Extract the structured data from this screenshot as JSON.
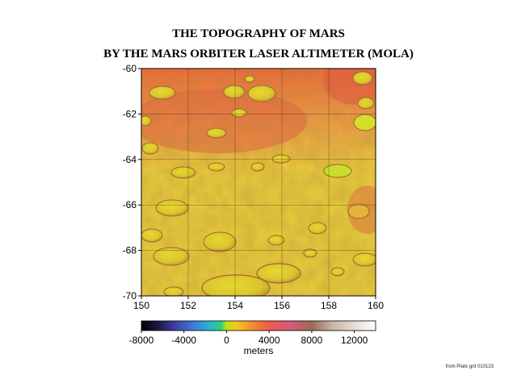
{
  "title": {
    "line1": "THE TOPOGRAPHY OF MARS",
    "line2": "BY THE MARS ORBITER LASER ALTIMETER (MOLA)"
  },
  "map": {
    "latitude_ticks": [
      -60,
      -62,
      -64,
      -66,
      -68,
      -70
    ],
    "latitude_labels": [
      "-60",
      "-62",
      "-64",
      "-66",
      "-68",
      "-70"
    ],
    "longitude_ticks": [
      150,
      152,
      154,
      156,
      158,
      160
    ],
    "longitude_labels": [
      "150",
      "152",
      "154",
      "156",
      "158",
      "160"
    ],
    "lat_range": [
      -70,
      -60
    ],
    "lon_range": [
      150,
      160
    ],
    "grid": true
  },
  "colorbar": {
    "range_m": [
      -8000,
      14000
    ],
    "tick_values": [
      -8000,
      -4000,
      0,
      4000,
      8000,
      12000
    ],
    "tick_labels": [
      "-8000",
      "-4000",
      "0",
      "4000",
      "8000",
      "12000"
    ],
    "unit": "meters",
    "stops": [
      {
        "value": -8000,
        "color": "#000000"
      },
      {
        "value": -6500,
        "color": "#1c1640"
      },
      {
        "value": -5000,
        "color": "#3c3a9a"
      },
      {
        "value": -3000,
        "color": "#3f7ee0"
      },
      {
        "value": -1500,
        "color": "#27b7c8"
      },
      {
        "value": -500,
        "color": "#2fd07a"
      },
      {
        "value": 0,
        "color": "#bfe11a"
      },
      {
        "value": 1000,
        "color": "#f4c321"
      },
      {
        "value": 2500,
        "color": "#f48a2c"
      },
      {
        "value": 4000,
        "color": "#ee5a4d"
      },
      {
        "value": 6000,
        "color": "#d45a7c"
      },
      {
        "value": 8000,
        "color": "#9b6a56"
      },
      {
        "value": 10000,
        "color": "#c9b8a8"
      },
      {
        "value": 14000,
        "color": "#ffffff"
      }
    ]
  },
  "terrain_colors": {
    "highland": "#ee6a3a",
    "mid": "#f0a244",
    "lowland": "#e9cc3a",
    "crater_floor": "#c9d42a"
  },
  "credit": "from Plate grd 010123"
}
